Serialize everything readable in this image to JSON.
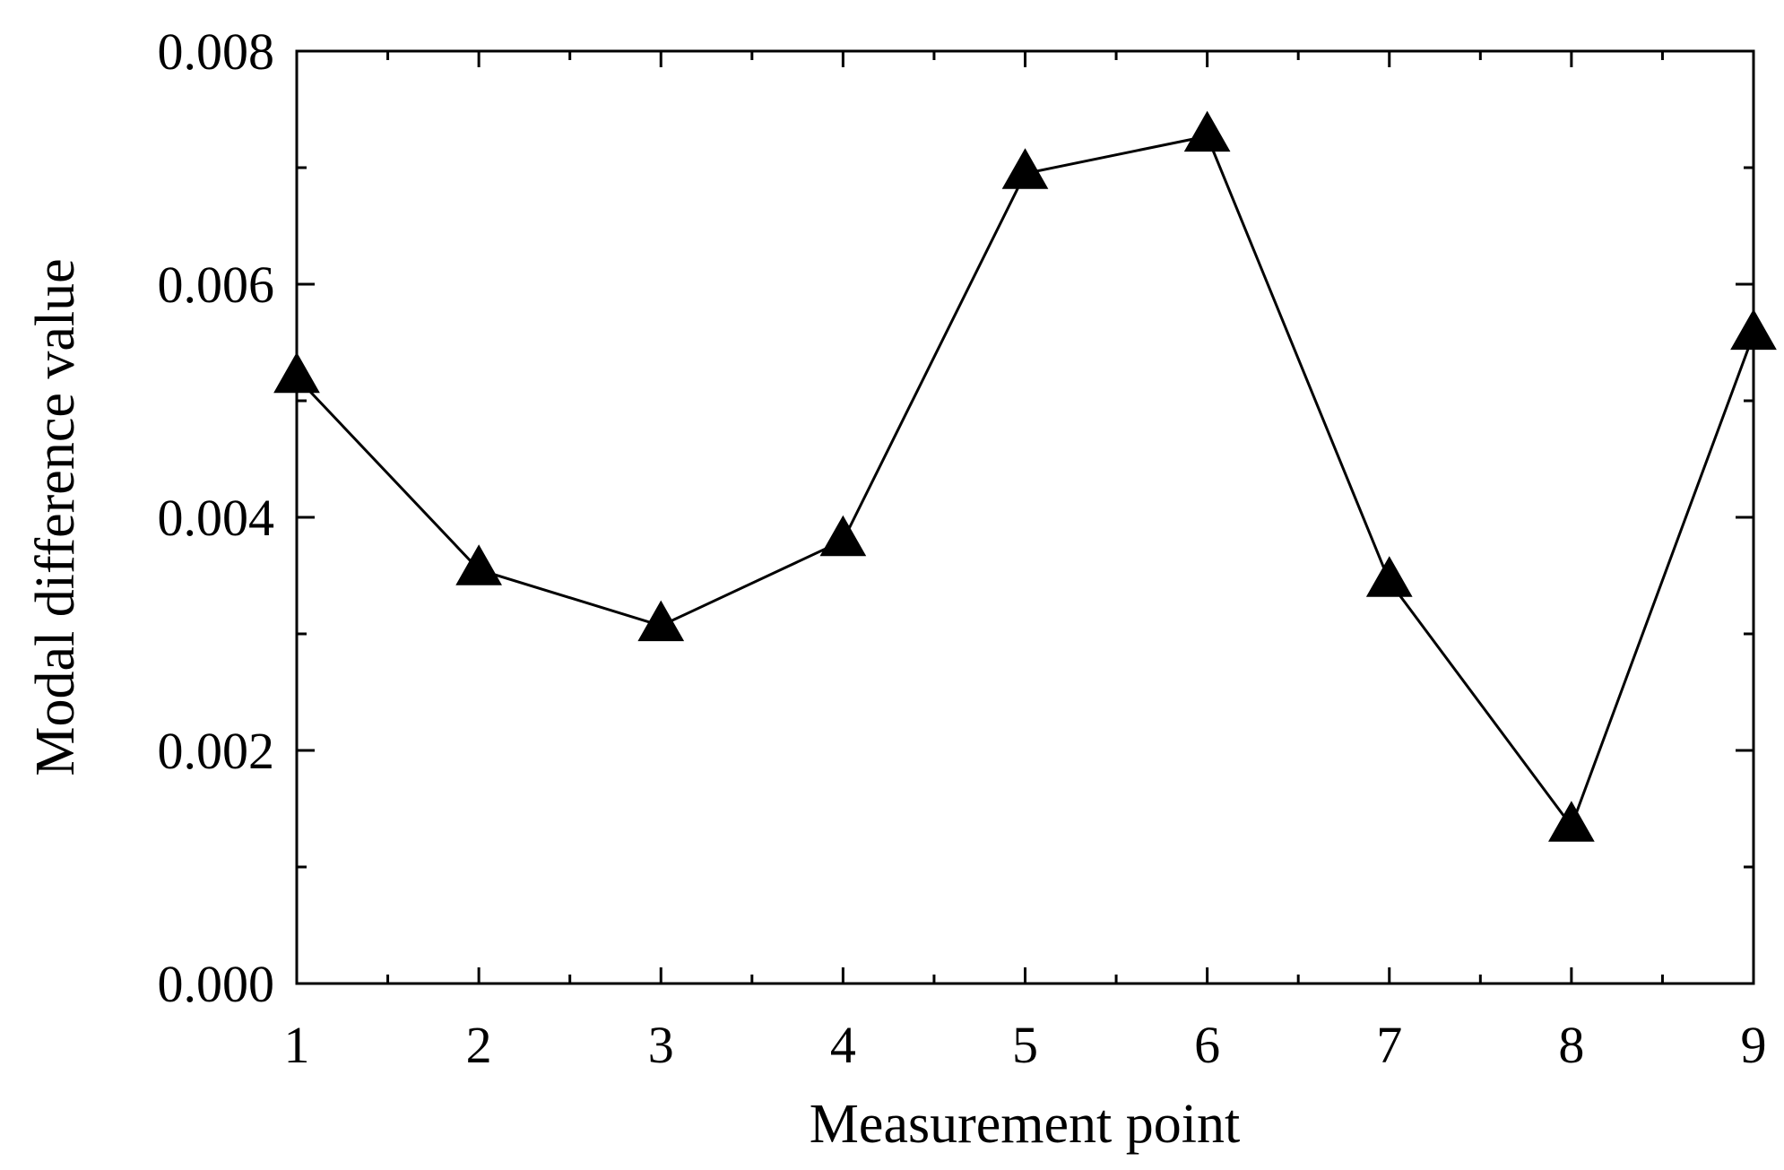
{
  "chart_data": {
    "type": "line",
    "title": "",
    "xlabel": "Measurement point",
    "ylabel": "Modal difference value",
    "xlim": [
      1,
      9
    ],
    "ylim": [
      0,
      0.008
    ],
    "x_ticks": [
      "1",
      "2",
      "3",
      "4",
      "5",
      "6",
      "7",
      "8",
      "9"
    ],
    "y_ticks": [
      "0.000",
      "0.002",
      "0.004",
      "0.006",
      "0.008"
    ],
    "grid": false,
    "legend": "none",
    "marker": "filled-triangle",
    "line_color": "#000000",
    "series": [
      {
        "x": [
          1,
          2,
          3,
          4,
          5,
          6,
          7,
          8,
          9
        ],
        "values": [
          0.0052,
          0.00355,
          0.00307,
          0.0038,
          0.00695,
          0.00727,
          0.00345,
          0.00135,
          0.00557
        ]
      }
    ]
  }
}
